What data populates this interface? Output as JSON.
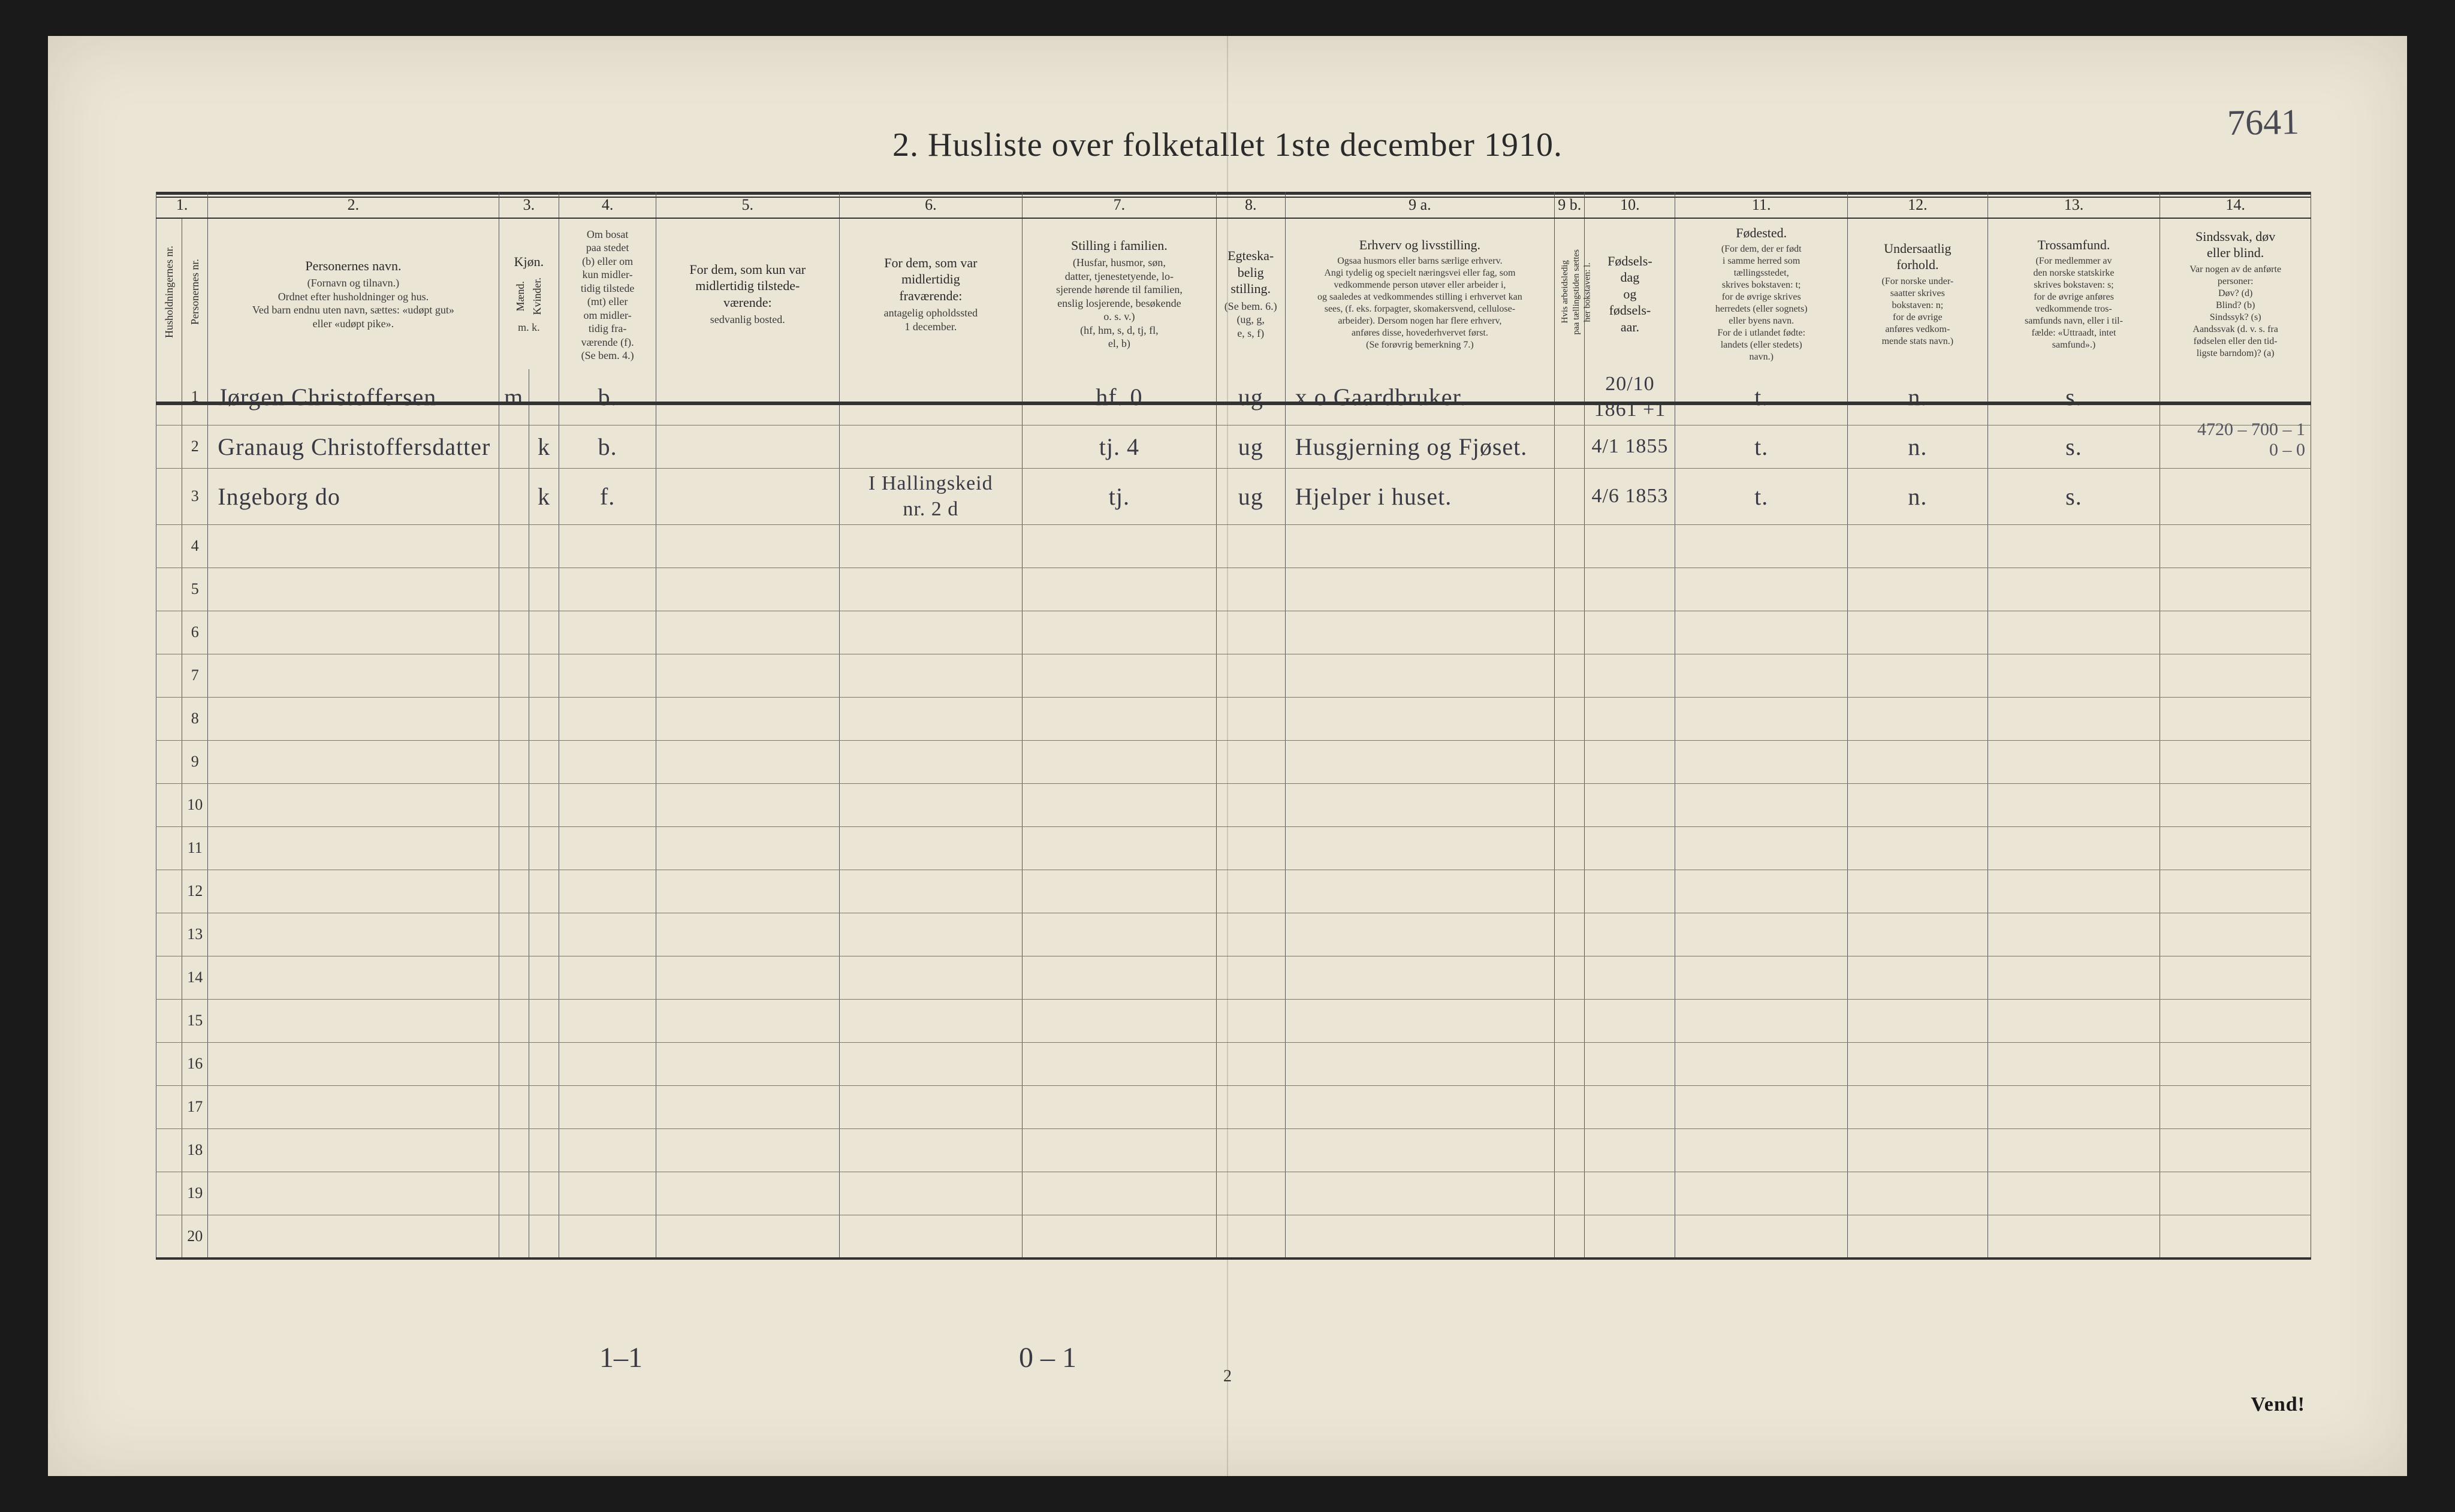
{
  "title": "2.  Husliste over folketallet 1ste december 1910.",
  "top_handwritten": "7641",
  "page_number": "2",
  "vend": "Vend!",
  "margin_note_right": "4720 – 700 – 1\n0 – 0",
  "footer_left": "1–1",
  "footer_mid": "0 – 1",
  "header": {
    "nums": [
      "1.",
      "2.",
      "3.",
      "4.",
      "5.",
      "6.",
      "7.",
      "8.",
      "9 a.",
      "9 b.",
      "10.",
      "11.",
      "12.",
      "13.",
      "14."
    ],
    "col1_v1": "Husholdningernes nr.",
    "col1_v2": "Personernes nr.",
    "col2": "Personernes navn.",
    "col2_sub": "(Fornavn og tilnavn.)\nOrdnet efter husholdninger og hus.\nVed barn endnu uten navn, sættes: «udøpt gut»\neller «udøpt pike».",
    "col3": "Kjøn.",
    "col3_sub_m": "Mænd.",
    "col3_sub_k": "Kvinder.",
    "col3_mk": "m.  k.",
    "col4": "Om bosat\npaa stedet\n(b) eller om\nkun midler-\ntidig tilstede\n(mt) eller\nom midler-\ntidig fra-\nværende (f).\n(Se bem. 4.)",
    "col5": "For dem, som kun var\nmidlertidig tilstede-\nværende:",
    "col5_sub": "sedvanlig bosted.",
    "col6": "For dem, som var\nmidlertidig\nfraværende:",
    "col6_sub": "antagelig opholdssted\n1 december.",
    "col7": "Stilling i familien.",
    "col7_sub": "(Husfar, husmor, søn,\ndatter, tjenestetyende, lo-\nsjerende hørende til familien,\nenslig losjerende, besøkende\no. s. v.)\n(hf, hm, s, d, tj, fl,\nel, b)",
    "col8": "Egteska-\nbelig\nstilling.",
    "col8_sub": "(Se bem. 6.)\n(ug, g,\ne, s, f)",
    "col9": "Erhverv og livsstilling.",
    "col9_sub": "Ogsaa husmors eller barns særlige erhverv.\nAngi tydelig og specielt næringsvei eller fag, som\nvedkommende person utøver eller arbeider i,\nog saaledes at vedkommendes stilling i erhvervet kan\nsees, (f. eks. forpagter, skomakersvend, cellulose-\narbeider). Dersom nogen har flere erhverv,\nanføres disse, hovederhvervet først.\n(Se forøvrig bemerkning 7.)",
    "col9b_v": "Hvis arbeidsledig\npaa tællingstiden sættes\nher bokstaven: l.",
    "col10": "Fødsels-\ndag\nog\nfødsels-\naar.",
    "col11": "Fødested.",
    "col11_sub": "(For dem, der er født\ni samme herred som\ntællingsstedet,\nskrives bokstaven: t;\nfor de øvrige skrives\nherredets (eller sognets)\neller byens navn.\nFor de i utlandet fødte:\nlandets (eller stedets)\nnavn.)",
    "col12": "Undersaatlig\nforhold.",
    "col12_sub": "(For norske under-\nsaatter skrives\nbokstaven: n;\nfor de øvrige\nanføres vedkom-\nmende stats navn.)",
    "col13": "Trossamfund.",
    "col13_sub": "(For medlemmer av\nden norske statskirke\nskrives bokstaven: s;\nfor de øvrige anføres\nvedkommende tros-\nsamfunds navn, eller i til-\nfælde: «Uttraadt, intet\nsamfund».)",
    "col14": "Sindssvak, døv\neller blind.",
    "col14_sub": "Var nogen av de anførte\npersoner:\nDøv?        (d)\nBlind?       (b)\nSindssyk?  (s)\nAandssvak (d. v. s. fra\nfødselen eller den tid-\nligste barndom)?  (a)"
  },
  "rows": [
    {
      "n": "1",
      "name": "Jørgen Christoffersen",
      "m": "m",
      "k": "",
      "b": "b.",
      "c5": "",
      "c6": "",
      "c7": "hf.",
      "c7b": "0",
      "c8": "ug",
      "c9": "x o Gaardbruker.",
      "c9b": "",
      "c10": "20/10 1861",
      "c10p": "+1",
      "c11": "t.",
      "c12": "n.",
      "c13": "s.",
      "c14": ""
    },
    {
      "n": "2",
      "name": "Granaug Christoffersdatter",
      "m": "",
      "k": "k",
      "b": "b.",
      "c5": "",
      "c6": "",
      "c7": "tj.",
      "c7b": "4",
      "c8": "ug",
      "c9": "Husgjerning og Fjøset.",
      "c9b": "",
      "c10": "4/1 1855",
      "c10p": "",
      "c11": "t.",
      "c12": "n.",
      "c13": "s.",
      "c14": ""
    },
    {
      "n": "3",
      "name": "Ingeborg        do",
      "m": "",
      "k": "k",
      "b": "f.",
      "c5": "",
      "c6": "I Hallingskeid\nnr. 2 d",
      "c7": "tj.",
      "c7b": "",
      "c8": "ug",
      "c9": "Hjelper i huset.",
      "c9b": "",
      "c10": "4/6 1853",
      "c10p": "",
      "c11": "t.",
      "c12": "n.",
      "c13": "s.",
      "c14": ""
    }
  ],
  "blank_rows": [
    "4",
    "5",
    "6",
    "7",
    "8",
    "9",
    "10",
    "11",
    "12",
    "13",
    "14",
    "15",
    "16",
    "17",
    "18",
    "19",
    "20"
  ],
  "colors": {
    "paper": "#ebe5d6",
    "ink": "#2a2a2a",
    "hand": "#3a3a44",
    "rule": "#333333"
  }
}
